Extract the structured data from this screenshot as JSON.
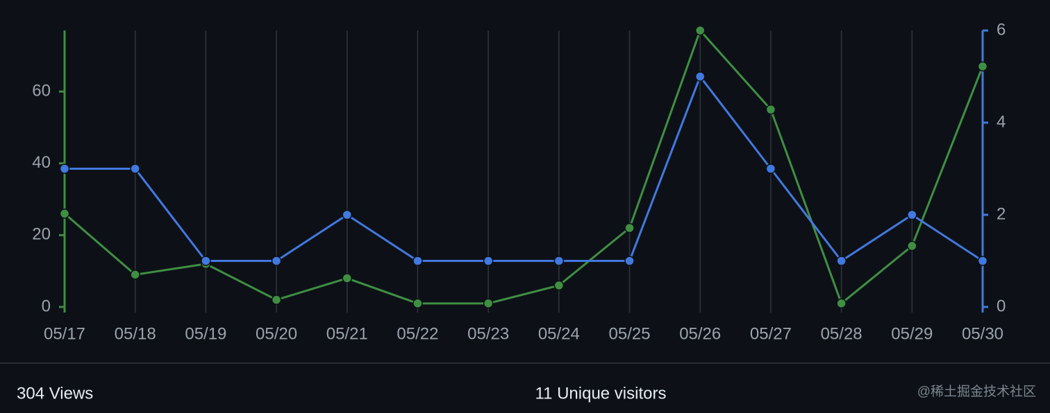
{
  "chart_data": {
    "type": "line",
    "categories": [
      "05/17",
      "05/18",
      "05/19",
      "05/20",
      "05/21",
      "05/22",
      "05/23",
      "05/24",
      "05/25",
      "05/26",
      "05/27",
      "05/28",
      "05/29",
      "05/30"
    ],
    "series": [
      {
        "color": "#3f8f43",
        "axis": "y",
        "values": [
          26,
          9,
          12,
          2,
          8,
          1,
          1,
          6,
          22,
          77,
          55,
          1,
          17,
          67
        ]
      },
      {
        "color": "#4279e0",
        "axis": "y2",
        "values": [
          3,
          3,
          1,
          1,
          2,
          1,
          1,
          1,
          1,
          5,
          3,
          1,
          2,
          1
        ]
      }
    ],
    "ylim": [
      0,
      77
    ],
    "yticks": [
      0,
      20,
      40,
      60
    ],
    "y2lim": [
      0,
      6
    ],
    "y2ticks": [
      0,
      2,
      4,
      6
    ],
    "grid": true
  },
  "footer": {
    "views": "304 Views",
    "visitors": "11 Unique visitors",
    "watermark": "@稀土掘金技术社区"
  }
}
